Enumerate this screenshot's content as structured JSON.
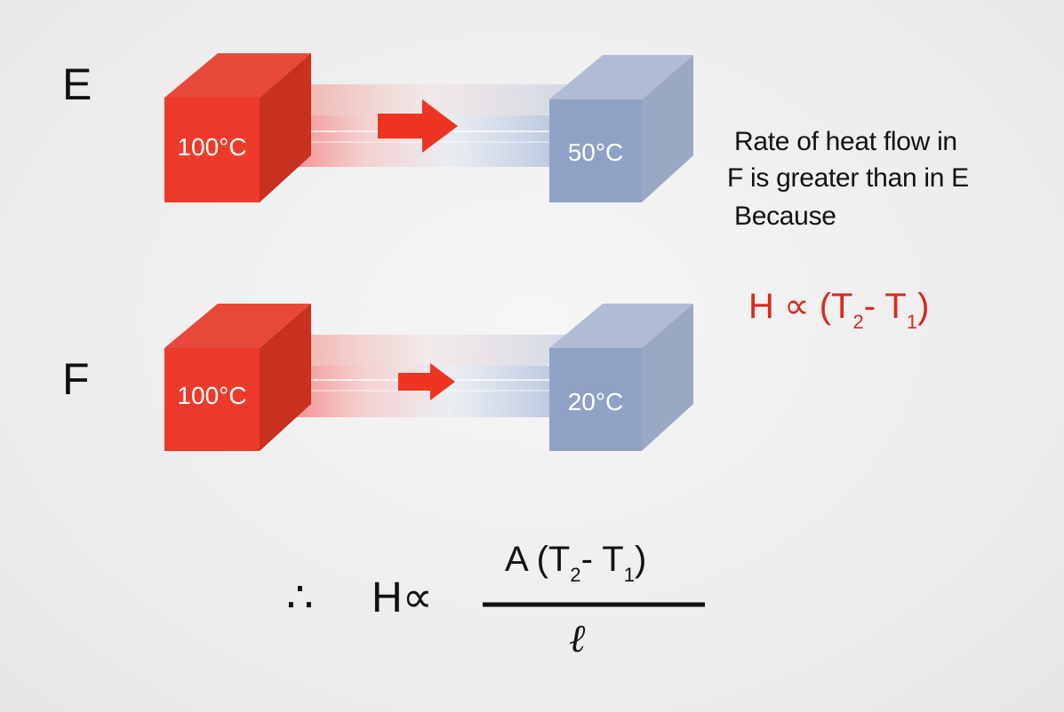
{
  "rows": [
    {
      "label": "E",
      "hot": {
        "temperature": "100°C",
        "color": "#ee3a2a"
      },
      "cold": {
        "temperature": "50°C",
        "color": "#8fa2c6"
      },
      "arrow_scale": 1.0
    },
    {
      "label": "F",
      "hot": {
        "temperature": "100°C",
        "color": "#ee3a2a"
      },
      "cold": {
        "temperature": "20°C",
        "color": "#8fa2c6"
      },
      "arrow_scale": 0.7
    }
  ],
  "explanation": {
    "line1": "Rate of heat flow in",
    "line2": "F is greater than in E",
    "line3": "Because"
  },
  "proportionality": {
    "lhs": "H ∝ (T",
    "sub2": "2",
    "mid": "- T",
    "sub1": "1",
    "rhs": ")",
    "color": "#d82a1e"
  },
  "conclusion": {
    "therefore": "∴",
    "lhs": "H∝",
    "num_a": "A (T",
    "num_sub2": "2",
    "num_mid": "- T",
    "num_sub1": "1",
    "num_close": ")",
    "denominator": "ℓ"
  },
  "colors": {
    "hot_front": "#ee3a2a",
    "hot_top": "#e8483a",
    "hot_side": "#c82a1c",
    "cold_front": "#8fa2c6",
    "cold_top": "#b0bcd4",
    "cold_side": "#9aa8c4",
    "arrow": "#ee3322"
  }
}
